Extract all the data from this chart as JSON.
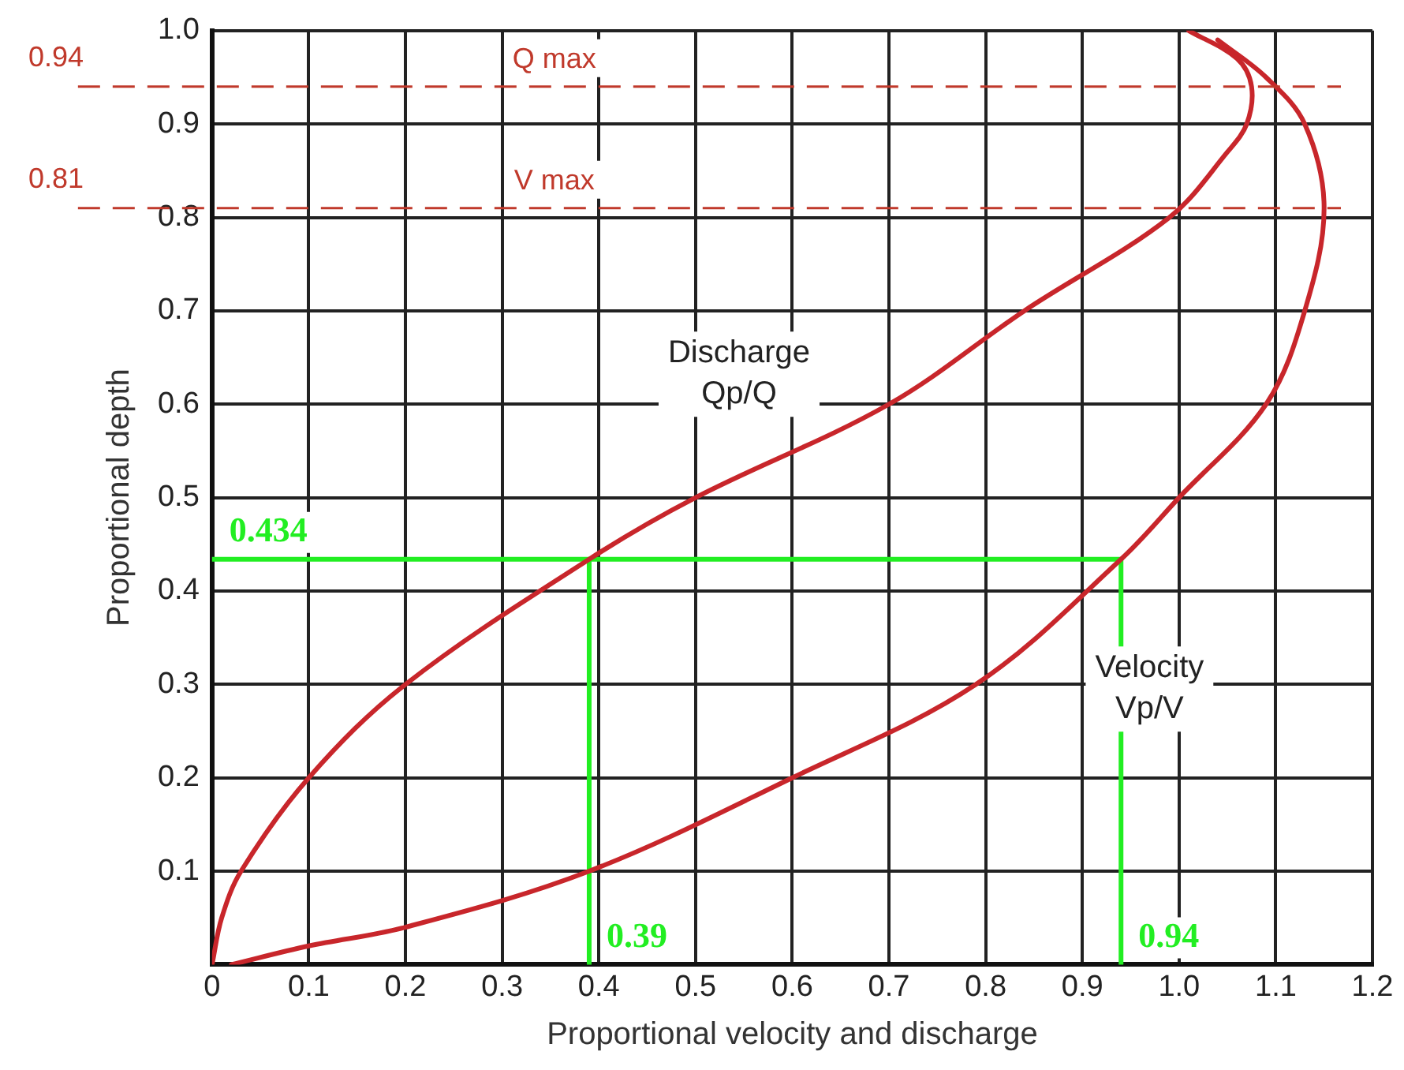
{
  "chart_data": {
    "type": "line",
    "xlabel": "Proportional velocity and discharge",
    "ylabel": "Proportional depth",
    "xlim": [
      0,
      1.2
    ],
    "ylim": [
      0,
      1
    ],
    "xticks": [
      0,
      0.1,
      0.2,
      0.3,
      0.4,
      0.5,
      0.6,
      0.7,
      0.8,
      0.9,
      {
        "value": 1,
        "label": "1.0"
      },
      1.1,
      1.2
    ],
    "yticks": [
      {
        "value": 0,
        "label": null
      },
      0.1,
      0.2,
      0.3,
      0.4,
      0.5,
      0.6,
      0.7,
      0.8,
      0.9,
      {
        "value": 1,
        "label": "1.0"
      }
    ],
    "grid": true,
    "marker": "none",
    "series": [
      {
        "name": "Discharge Qp/Q",
        "color": "#c8262b",
        "x": [
          0,
          0.01,
          0.03,
          0.1,
          0.2,
          0.39,
          0.5,
          0.7,
          0.84,
          0.99,
          1.05,
          1.07,
          1.075,
          1.06,
          1.01
        ],
        "values": [
          0,
          0.05,
          0.1,
          0.2,
          0.3,
          0.434,
          0.5,
          0.6,
          0.7,
          0.8,
          0.87,
          0.9,
          0.94,
          0.97,
          1.0
        ]
      },
      {
        "name": "Velocity Vp/V",
        "color": "#c8262b",
        "x": [
          0.02,
          0.1,
          0.2,
          0.39,
          0.6,
          0.79,
          0.94,
          1.0,
          1.09,
          1.13,
          1.15,
          1.13,
          1.09,
          1.04
        ],
        "values": [
          0,
          0.02,
          0.04,
          0.1,
          0.2,
          0.3,
          0.434,
          0.5,
          0.6,
          0.7,
          0.81,
          0.9,
          0.95,
          0.99
        ]
      },
      {
        "color": "#22ee22",
        "x": [
          0,
          0.94
        ],
        "values": [
          0.434,
          0.434
        ]
      },
      {
        "color": "#22ee22",
        "x": [
          0.39,
          0.39
        ],
        "values": [
          0,
          0.434
        ]
      },
      {
        "color": "#22ee22",
        "x": [
          0.94,
          0.94
        ],
        "values": [
          0,
          0.434
        ]
      }
    ],
    "ref_lines": [
      {
        "axis": "y",
        "value": 0.94,
        "label": "Q max",
        "color": "#c0392b",
        "line_style": "dashed"
      },
      {
        "axis": "y",
        "value": 0.81,
        "label": "V max",
        "color": "#c0392b",
        "line_style": "dashed"
      }
    ],
    "annotations": [
      "0.94",
      "0.81",
      {
        "text": "0.434",
        "x": 0,
        "y": 0.434
      },
      {
        "text": "0.39",
        "x": 0.39,
        "y": 0
      },
      {
        "text": "0.94",
        "x": 0.94,
        "y": 0
      }
    ]
  }
}
